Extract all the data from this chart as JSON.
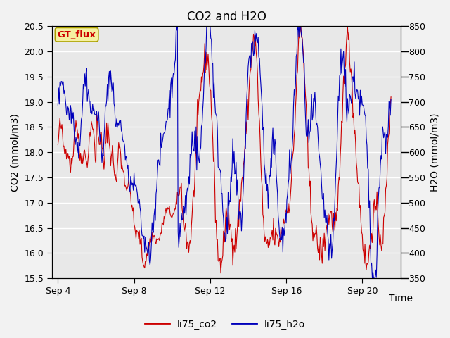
{
  "title": "CO2 and H2O",
  "xlabel": "Time",
  "ylabel_left": "CO2 (mmol/m3)",
  "ylabel_right": "H2O (mmol/m3)",
  "ylim_left": [
    15.5,
    20.5
  ],
  "ylim_right": [
    350,
    850
  ],
  "yticks_left": [
    15.5,
    16.0,
    16.5,
    17.0,
    17.5,
    18.0,
    18.5,
    19.0,
    19.5,
    20.0,
    20.5
  ],
  "yticks_right": [
    350,
    400,
    450,
    500,
    550,
    600,
    650,
    700,
    750,
    800,
    850
  ],
  "xtick_labels": [
    "Sep 4",
    "Sep 8",
    "Sep 12",
    "Sep 16",
    "Sep 20"
  ],
  "xtick_positions": [
    0,
    4,
    8,
    12,
    16
  ],
  "xlim": [
    -0.3,
    18.0
  ],
  "annotation_text": "GT_flux",
  "legend_labels": [
    "li75_co2",
    "li75_h2o"
  ],
  "line_colors": [
    "#cc0000",
    "#0000bb"
  ],
  "background_color": "#e8e8e8",
  "grid_color": "#ffffff",
  "title_fontsize": 12,
  "axis_label_fontsize": 10,
  "tick_fontsize": 9,
  "legend_fontsize": 10
}
